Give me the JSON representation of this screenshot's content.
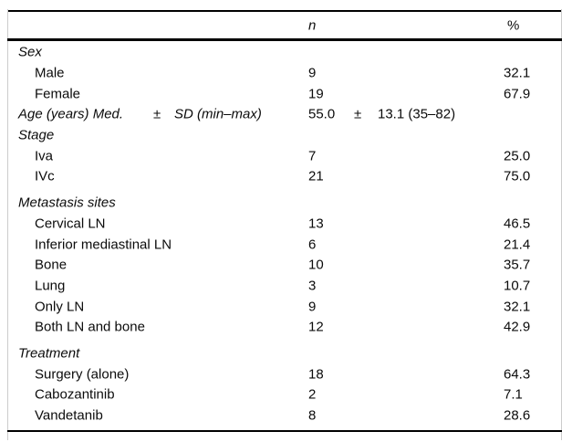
{
  "table": {
    "columns": {
      "n_label": "n",
      "pct_label": "%"
    },
    "rows": [
      {
        "type": "section",
        "label": "Sex"
      },
      {
        "type": "item",
        "label": "Male",
        "n": "9",
        "pct": "32.1"
      },
      {
        "type": "item",
        "label": "Female",
        "n": "19",
        "pct": "67.9"
      },
      {
        "type": "age",
        "label": "Age (years) Med.",
        "label_pm": "±",
        "label_suffix": "SD (min–max)",
        "n": "55.0",
        "n_pm": "±",
        "n_suffix": "13.1 (35–82)"
      },
      {
        "type": "section",
        "label": "Stage"
      },
      {
        "type": "item",
        "label": "Iva",
        "n": "7",
        "pct": "25.0"
      },
      {
        "type": "item",
        "label": "IVc",
        "n": "21",
        "pct": "75.0"
      },
      {
        "type": "section",
        "label": "Metastasis sites",
        "gap": true
      },
      {
        "type": "item",
        "label": "Cervical LN",
        "n": "13",
        "pct": "46.5"
      },
      {
        "type": "item",
        "label": "Inferior mediastinal LN",
        "n": "6",
        "pct": "21.4"
      },
      {
        "type": "item",
        "label": "Bone",
        "n": "10",
        "pct": "35.7"
      },
      {
        "type": "item",
        "label": "Lung",
        "n": "3",
        "pct": "10.7"
      },
      {
        "type": "item",
        "label": "Only LN",
        "n": "9",
        "pct": "32.1"
      },
      {
        "type": "item",
        "label": "Both LN and bone",
        "n": "12",
        "pct": "42.9"
      },
      {
        "type": "section",
        "label": "Treatment",
        "gap": true
      },
      {
        "type": "item",
        "label": "Surgery (alone)",
        "n": "18",
        "pct": "64.3"
      },
      {
        "type": "item",
        "label": "Cabozantinib",
        "n": "2",
        "pct": "7.1"
      },
      {
        "type": "item",
        "label": "Vandetanib",
        "n": "8",
        "pct": "28.6"
      }
    ]
  },
  "colors": {
    "rule": "#000000",
    "edge": "#cccccc",
    "text": "#0b0b0b",
    "background": "#ffffff"
  }
}
